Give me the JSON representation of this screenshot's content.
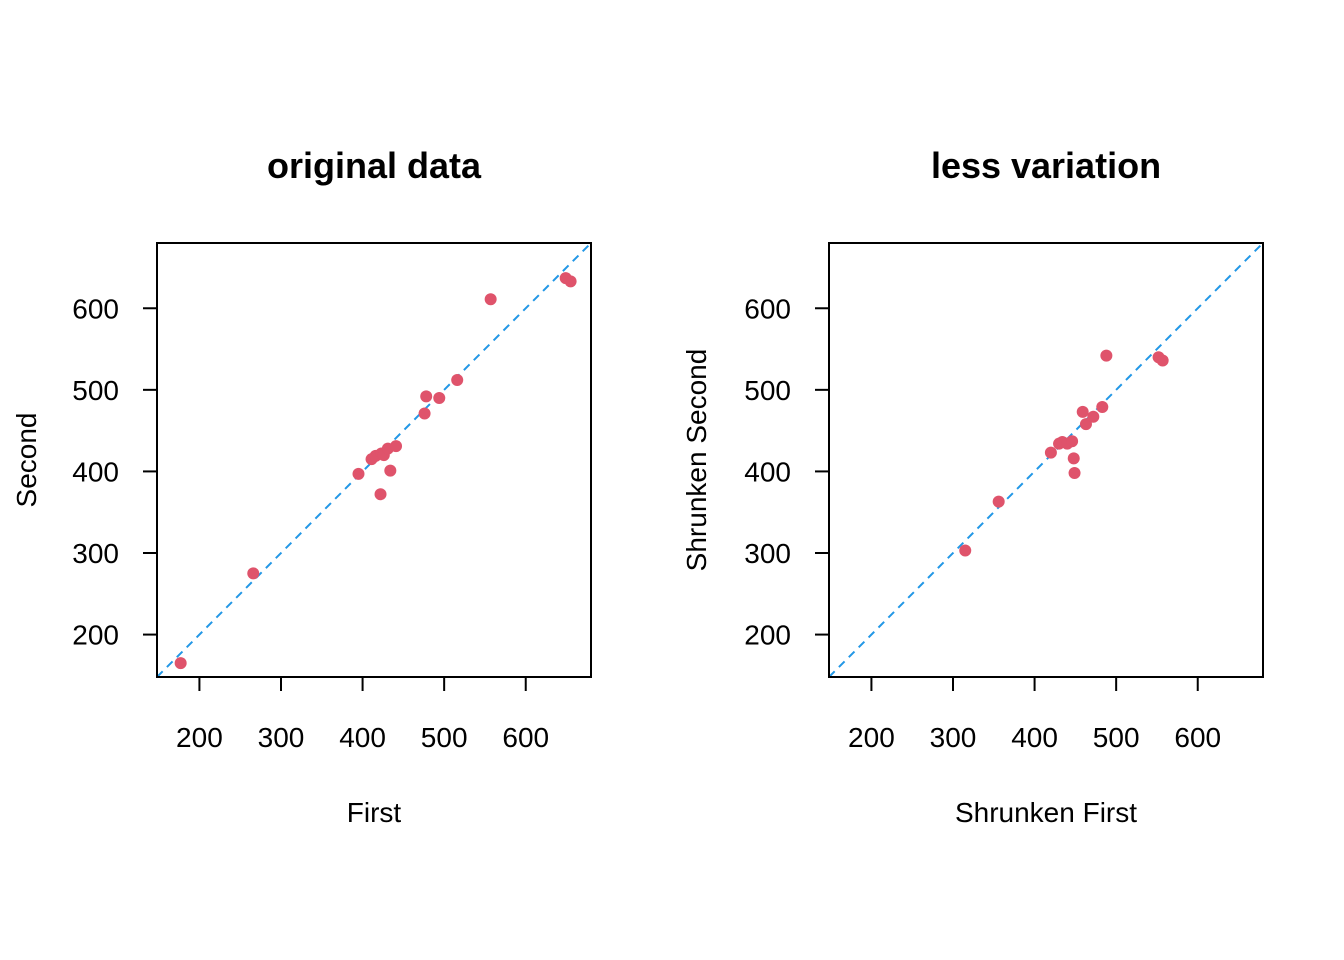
{
  "colors": {
    "points": "#DF536B",
    "reference_line": "#2297E6",
    "axes": "#000000",
    "background": "#FFFFFF"
  },
  "chart_data": [
    {
      "type": "scatter",
      "title": "original data",
      "xlabel": "First",
      "ylabel": "Second",
      "xlim": [
        148,
        680
      ],
      "ylim": [
        148,
        680
      ],
      "xticks": [
        200,
        300,
        400,
        500,
        600
      ],
      "yticks": [
        200,
        300,
        400,
        500,
        600
      ],
      "reference_line": "y = x (dashed)",
      "x": [
        177,
        266,
        395,
        411,
        416,
        423,
        426,
        431,
        434,
        441,
        422,
        476,
        478,
        494,
        516,
        557,
        649,
        655
      ],
      "y": [
        165,
        275,
        397,
        415,
        419,
        422,
        420,
        428,
        401,
        431,
        372,
        471,
        492,
        490,
        512,
        611,
        637,
        633
      ]
    },
    {
      "type": "scatter",
      "title": "less variation",
      "xlabel": "Shrunken First",
      "ylabel": "Shrunken Second",
      "xlim": [
        148,
        680
      ],
      "ylim": [
        148,
        680
      ],
      "xticks": [
        200,
        300,
        400,
        500,
        600
      ],
      "yticks": [
        200,
        300,
        400,
        500,
        600
      ],
      "reference_line": "y = x (dashed)",
      "x": [
        315,
        356,
        420,
        430,
        434,
        440,
        446,
        448,
        449,
        459,
        463,
        472,
        483,
        488,
        552,
        557
      ],
      "y": [
        303,
        363,
        423,
        434,
        436,
        434,
        437,
        416,
        398,
        473,
        458,
        467,
        479,
        542,
        540,
        536
      ]
    }
  ]
}
